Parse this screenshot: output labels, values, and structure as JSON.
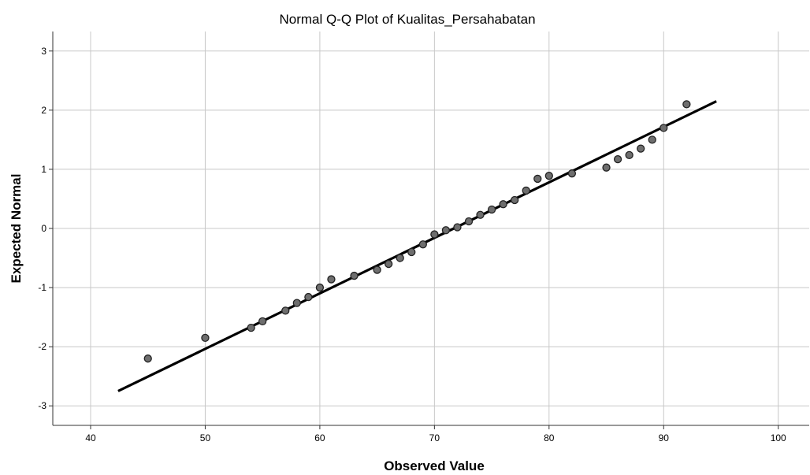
{
  "chart_data": {
    "type": "scatter",
    "title": "Normal Q-Q Plot of Kualitas_Persahabatan",
    "xlabel": "Observed Value",
    "ylabel": "Expected Normal",
    "xlim": [
      36.7,
      102.7
    ],
    "ylim": [
      -3.33,
      3.33
    ],
    "xticks": [
      "40",
      "50",
      "60",
      "70",
      "80",
      "90",
      "100"
    ],
    "yticks": [
      "3",
      "2",
      "1",
      "0",
      "-1",
      "-2",
      "-3"
    ],
    "xtick_values": [
      40,
      50,
      60,
      70,
      80,
      90,
      100
    ],
    "ytick_values": [
      3,
      2,
      1,
      0,
      -1,
      -2,
      -3
    ],
    "grid": true,
    "point_color": "#6e6e6e",
    "line_color": "#000000",
    "reference_line": {
      "x": [
        42.4,
        94.6
      ],
      "y": [
        -2.75,
        2.15
      ]
    },
    "points": [
      {
        "x": 45,
        "y": -2.2
      },
      {
        "x": 50,
        "y": -1.85
      },
      {
        "x": 54,
        "y": -1.68
      },
      {
        "x": 55,
        "y": -1.57
      },
      {
        "x": 57,
        "y": -1.39
      },
      {
        "x": 58,
        "y": -1.26
      },
      {
        "x": 59,
        "y": -1.16
      },
      {
        "x": 60,
        "y": -1.0
      },
      {
        "x": 61,
        "y": -0.86
      },
      {
        "x": 63,
        "y": -0.8
      },
      {
        "x": 65,
        "y": -0.7
      },
      {
        "x": 66,
        "y": -0.6
      },
      {
        "x": 67,
        "y": -0.5
      },
      {
        "x": 68,
        "y": -0.4
      },
      {
        "x": 69,
        "y": -0.27
      },
      {
        "x": 70,
        "y": -0.1
      },
      {
        "x": 71,
        "y": -0.03
      },
      {
        "x": 72,
        "y": 0.02
      },
      {
        "x": 73,
        "y": 0.12
      },
      {
        "x": 74,
        "y": 0.23
      },
      {
        "x": 75,
        "y": 0.32
      },
      {
        "x": 76,
        "y": 0.41
      },
      {
        "x": 77,
        "y": 0.48
      },
      {
        "x": 78,
        "y": 0.64
      },
      {
        "x": 79,
        "y": 0.84
      },
      {
        "x": 80,
        "y": 0.89
      },
      {
        "x": 82,
        "y": 0.93
      },
      {
        "x": 85,
        "y": 1.03
      },
      {
        "x": 86,
        "y": 1.17
      },
      {
        "x": 87,
        "y": 1.24
      },
      {
        "x": 88,
        "y": 1.35
      },
      {
        "x": 89,
        "y": 1.5
      },
      {
        "x": 90,
        "y": 1.7
      },
      {
        "x": 92,
        "y": 2.1
      }
    ]
  }
}
